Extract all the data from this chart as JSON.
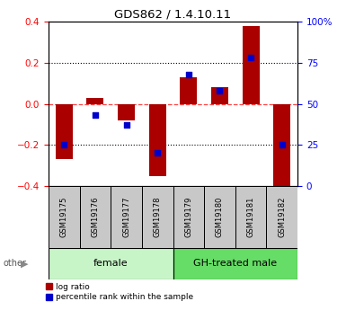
{
  "title": "GDS862 / 1.4.10.11",
  "samples": [
    "GSM19175",
    "GSM19176",
    "GSM19177",
    "GSM19178",
    "GSM19179",
    "GSM19180",
    "GSM19181",
    "GSM19182"
  ],
  "log_ratio": [
    -0.27,
    0.03,
    -0.08,
    -0.35,
    0.13,
    0.08,
    0.38,
    -0.45
  ],
  "percentile_rank": [
    25,
    43,
    37,
    20,
    68,
    58,
    78,
    25
  ],
  "groups": [
    {
      "label": "female",
      "start": 0,
      "end": 4,
      "color": "#c8f5c8"
    },
    {
      "label": "GH-treated male",
      "start": 4,
      "end": 8,
      "color": "#66dd66"
    }
  ],
  "bar_color": "#aa0000",
  "dot_color": "#0000cc",
  "ylim_left": [
    -0.4,
    0.4
  ],
  "ylim_right": [
    0,
    100
  ],
  "yticks_left": [
    -0.4,
    -0.2,
    0.0,
    0.2,
    0.4
  ],
  "yticks_right": [
    0,
    25,
    50,
    75,
    100
  ],
  "ytick_labels_right": [
    "0",
    "25",
    "50",
    "75",
    "100%"
  ],
  "zero_line_color": "#ff4444",
  "grid_color": "#000000",
  "background_color": "#ffffff",
  "plot_bg_color": "#ffffff",
  "label_box_color": "#c8c8c8",
  "other_arrow_color": "#888888"
}
